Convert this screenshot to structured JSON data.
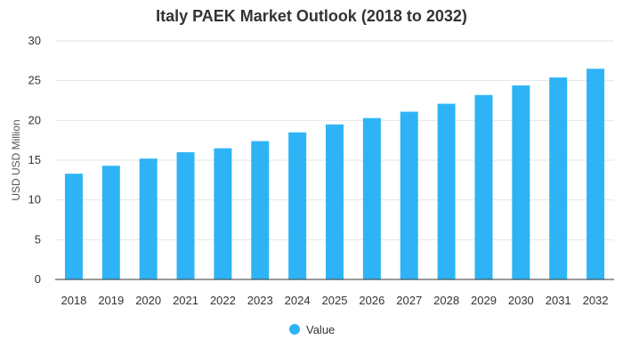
{
  "chart_data": {
    "type": "bar",
    "title": "Italy PAEK Market Outlook (2018 to 2032)",
    "xlabel": "",
    "ylabel": "USD USD Million",
    "ylim": [
      0,
      30
    ],
    "yticks": [
      0,
      5,
      10,
      15,
      20,
      25,
      30
    ],
    "grid": true,
    "legend_position": "bottom",
    "categories": [
      "2018",
      "2019",
      "2020",
      "2021",
      "2022",
      "2023",
      "2024",
      "2025",
      "2026",
      "2027",
      "2028",
      "2029",
      "2030",
      "2031",
      "2032"
    ],
    "series": [
      {
        "name": "Value",
        "color": "#2EB4F6",
        "values": [
          13.3,
          14.3,
          15.2,
          16.0,
          16.5,
          17.4,
          18.5,
          19.5,
          20.3,
          21.1,
          22.1,
          23.2,
          24.4,
          25.4,
          26.5
        ]
      }
    ]
  }
}
